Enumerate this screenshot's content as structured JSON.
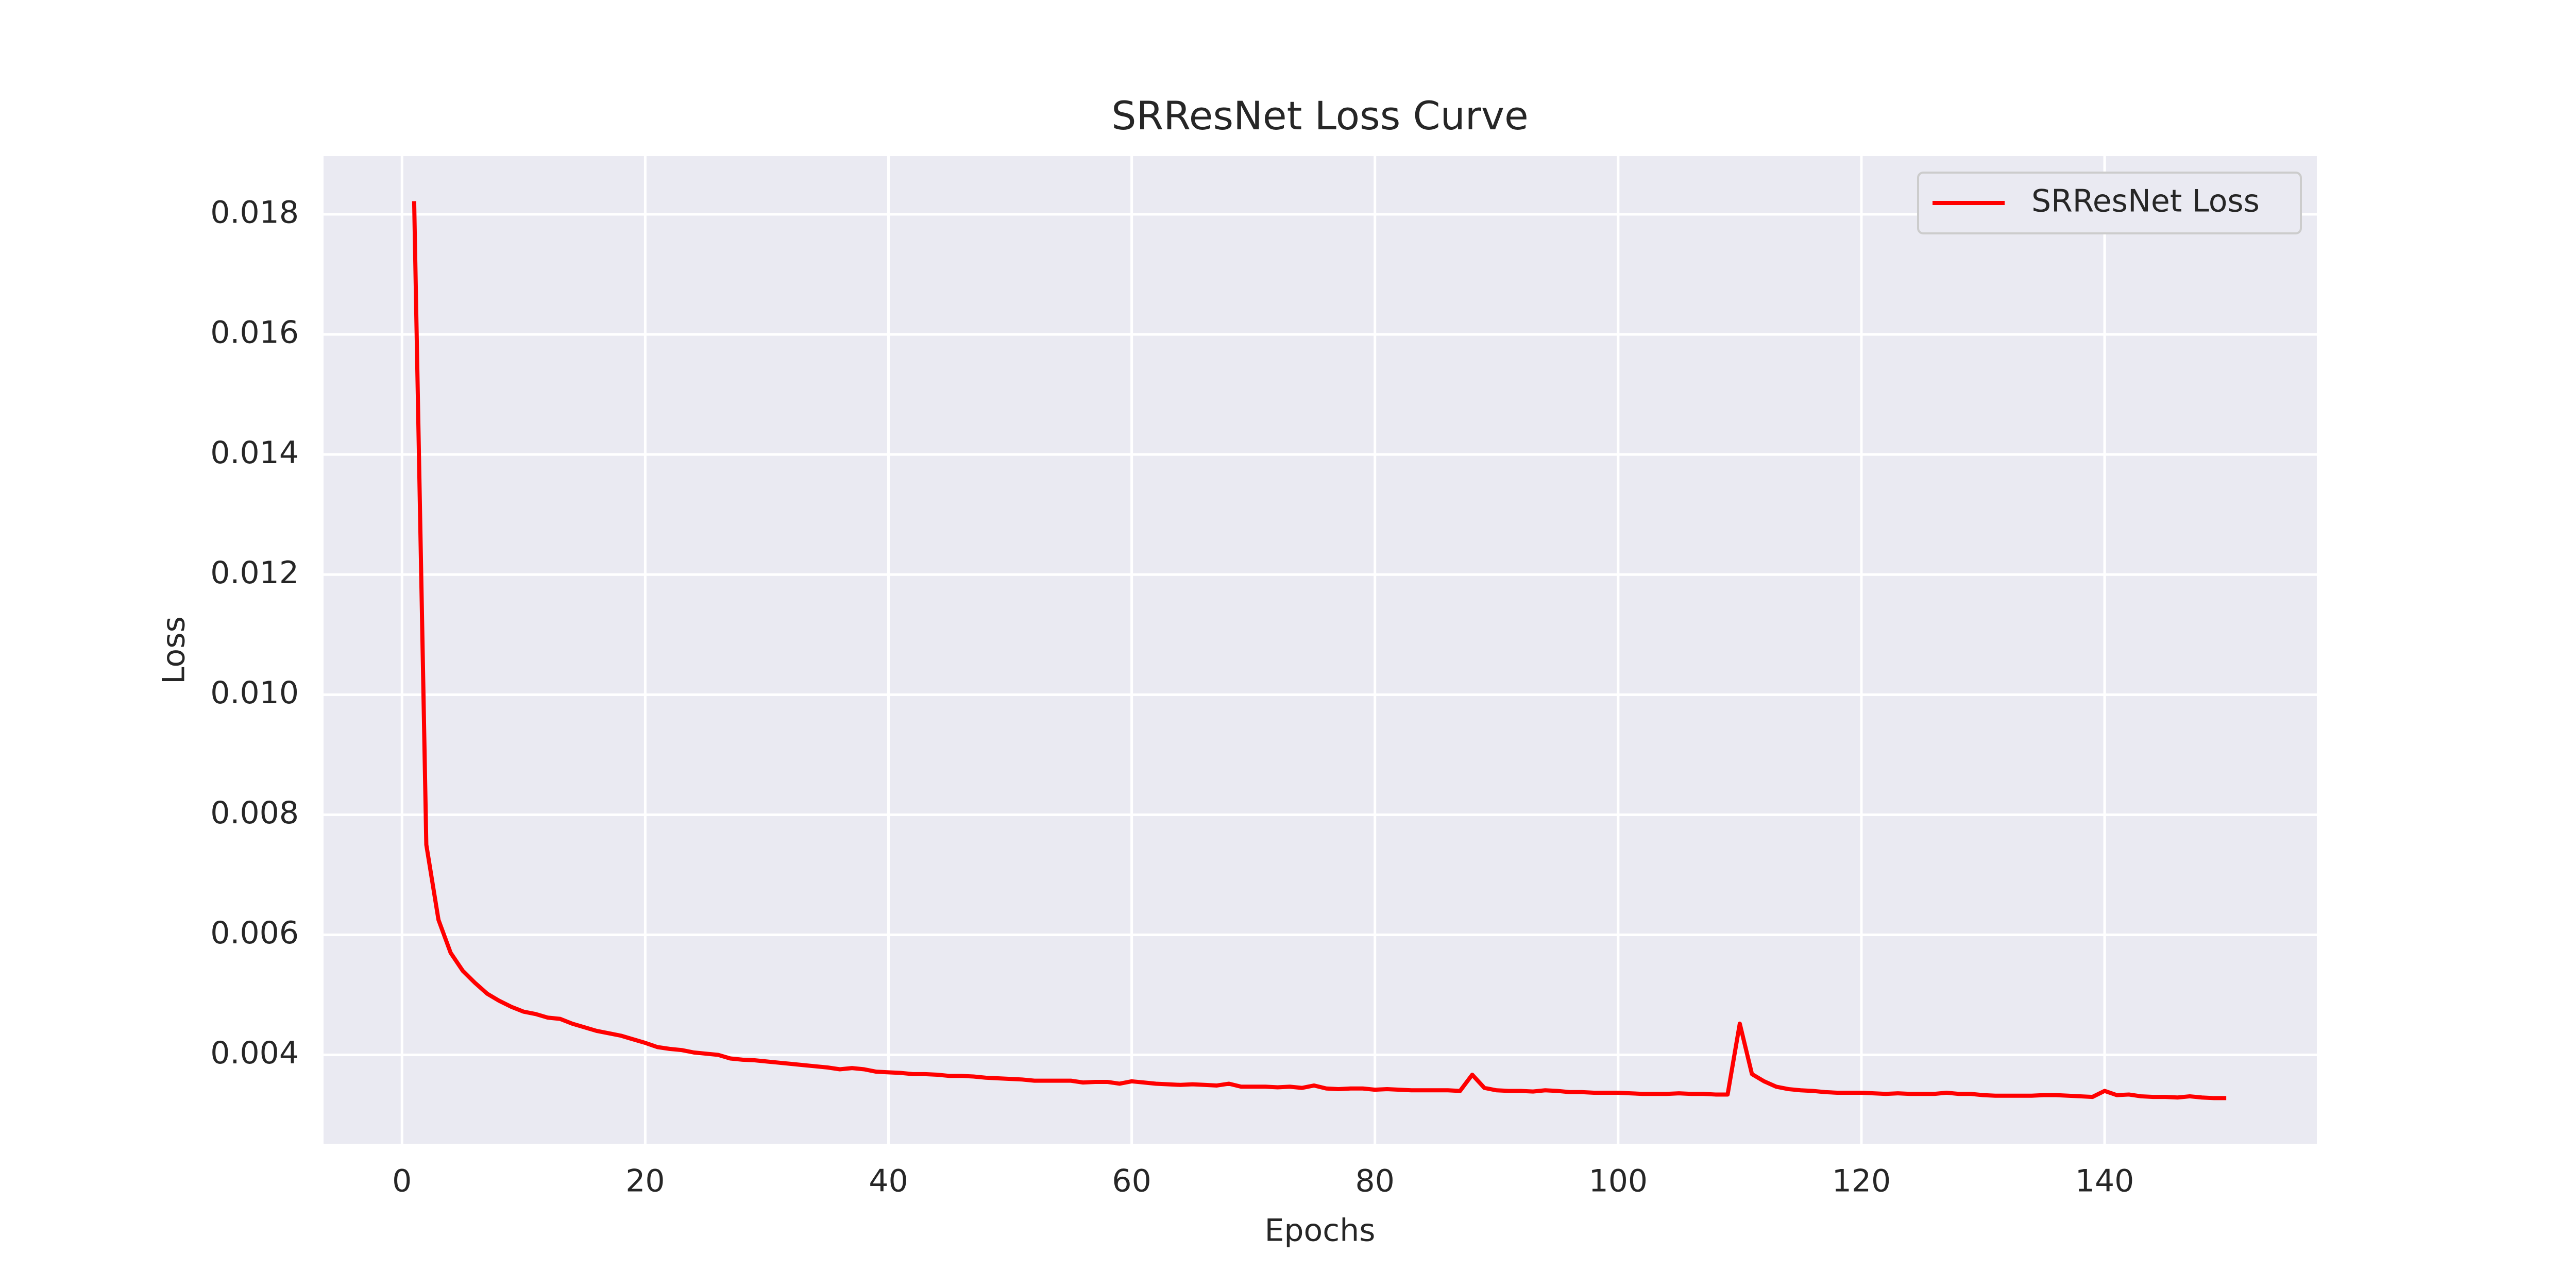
{
  "chart_data": {
    "type": "line",
    "title": "SRResNet Loss Curve",
    "xlabel": "Epochs",
    "ylabel": "Loss",
    "x": [
      1,
      2,
      3,
      4,
      5,
      6,
      7,
      8,
      9,
      10,
      11,
      12,
      13,
      14,
      15,
      16,
      17,
      18,
      19,
      20,
      21,
      22,
      23,
      24,
      25,
      26,
      27,
      28,
      29,
      30,
      31,
      32,
      33,
      34,
      35,
      36,
      37,
      38,
      39,
      40,
      41,
      42,
      43,
      44,
      45,
      46,
      47,
      48,
      49,
      50,
      51,
      52,
      53,
      54,
      55,
      56,
      57,
      58,
      59,
      60,
      61,
      62,
      63,
      64,
      65,
      66,
      67,
      68,
      69,
      70,
      71,
      72,
      73,
      74,
      75,
      76,
      77,
      78,
      79,
      80,
      81,
      82,
      83,
      84,
      85,
      86,
      87,
      88,
      89,
      90,
      91,
      92,
      93,
      94,
      95,
      96,
      97,
      98,
      99,
      100,
      101,
      102,
      103,
      104,
      105,
      106,
      107,
      108,
      109,
      110,
      111,
      112,
      113,
      114,
      115,
      116,
      117,
      118,
      119,
      120,
      121,
      122,
      123,
      124,
      125,
      126,
      127,
      128,
      129,
      130,
      131,
      132,
      133,
      134,
      135,
      136,
      137,
      138,
      139,
      140,
      141,
      142,
      143,
      144,
      145,
      146,
      147,
      148,
      149,
      150
    ],
    "series": [
      {
        "name": "SRResNet Loss",
        "color": "#ff0000",
        "values": [
          0.01822,
          0.0075,
          0.00625,
          0.0057,
          0.0054,
          0.0052,
          0.00502,
          0.0049,
          0.0048,
          0.00472,
          0.00468,
          0.00462,
          0.0046,
          0.00452,
          0.00446,
          0.0044,
          0.00436,
          0.00432,
          0.00426,
          0.0042,
          0.00413,
          0.0041,
          0.00408,
          0.00404,
          0.00402,
          0.004,
          0.00394,
          0.00392,
          0.00391,
          0.00389,
          0.00387,
          0.00385,
          0.00383,
          0.00381,
          0.00379,
          0.00376,
          0.00378,
          0.00376,
          0.00372,
          0.00371,
          0.0037,
          0.00368,
          0.00368,
          0.00367,
          0.00365,
          0.00365,
          0.00364,
          0.00362,
          0.00361,
          0.0036,
          0.00359,
          0.00357,
          0.00357,
          0.00357,
          0.00357,
          0.00354,
          0.00355,
          0.00355,
          0.00352,
          0.00356,
          0.00354,
          0.00352,
          0.00351,
          0.0035,
          0.00351,
          0.0035,
          0.00349,
          0.00352,
          0.00347,
          0.00347,
          0.00347,
          0.00346,
          0.00347,
          0.00345,
          0.00349,
          0.00344,
          0.00343,
          0.00344,
          0.00344,
          0.00342,
          0.00343,
          0.00342,
          0.00341,
          0.00341,
          0.00341,
          0.00341,
          0.0034,
          0.00367,
          0.00345,
          0.00341,
          0.0034,
          0.0034,
          0.00339,
          0.00341,
          0.0034,
          0.00338,
          0.00338,
          0.00337,
          0.00337,
          0.00337,
          0.00336,
          0.00335,
          0.00335,
          0.00335,
          0.00336,
          0.00335,
          0.00335,
          0.00334,
          0.00334,
          0.00452,
          0.00368,
          0.00356,
          0.00347,
          0.00343,
          0.00341,
          0.0034,
          0.00338,
          0.00337,
          0.00337,
          0.00337,
          0.00336,
          0.00335,
          0.00336,
          0.00335,
          0.00335,
          0.00335,
          0.00337,
          0.00335,
          0.00335,
          0.00333,
          0.00332,
          0.00332,
          0.00332,
          0.00332,
          0.00333,
          0.00333,
          0.00332,
          0.00331,
          0.0033,
          0.0034,
          0.00333,
          0.00334,
          0.00331,
          0.0033,
          0.0033,
          0.00329,
          0.00331,
          0.00329,
          0.00328,
          0.00328
        ]
      }
    ],
    "xlim": [
      -6.45,
      157.45
    ],
    "xticks": [
      0,
      20,
      40,
      60,
      80,
      100,
      120,
      140
    ],
    "ylim": [
      0.00252,
      0.01897
    ],
    "yticks": [
      0.004,
      0.006,
      0.008,
      {
        "value": 0.01,
        "label": "0.010"
      },
      0.012,
      0.014,
      0.016,
      0.018
    ],
    "grid": true,
    "legend": "upper right"
  }
}
